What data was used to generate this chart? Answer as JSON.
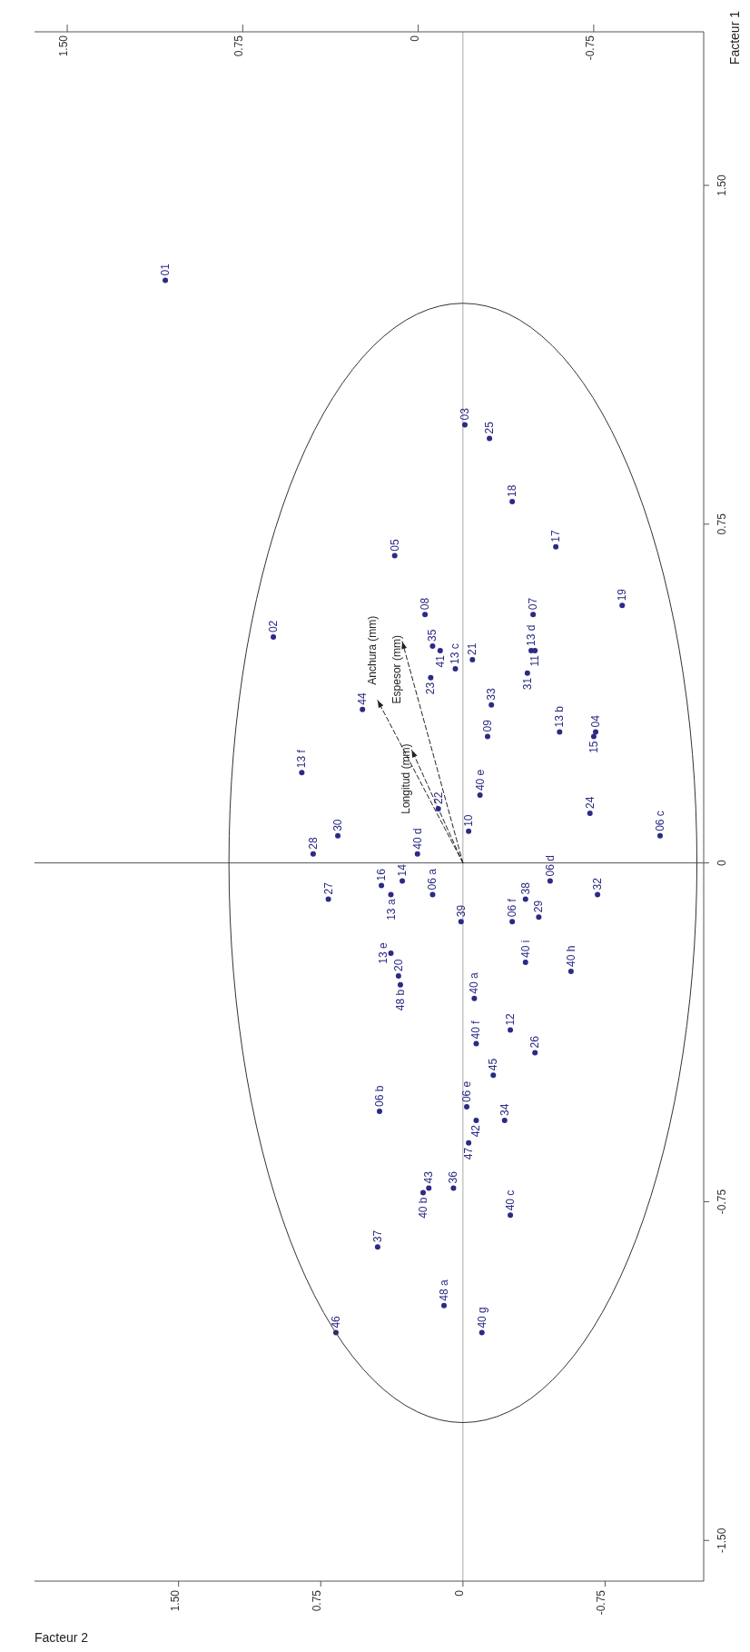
{
  "chart_data": {
    "type": "scatter",
    "xlabel": "Facteur 2",
    "ylabel": "Facteur 1",
    "marker": "circle",
    "xlim": [
      2.26,
      -1.27
    ],
    "ylim": [
      -1.59,
      1.84
    ],
    "x2lim": [
      1.64,
      -1.22
    ],
    "xticks": [
      {
        "value": 1.5,
        "label": "1.50"
      },
      0.75,
      0,
      -0.75
    ],
    "x2ticks": [
      {
        "value": 1.5,
        "label": "1.50"
      },
      0.75,
      0,
      -0.75
    ],
    "yticks": [
      {
        "value": -1.5,
        "label": "-1.50"
      },
      -0.75,
      0,
      0.75,
      {
        "value": 1.5,
        "label": "1.50"
      }
    ],
    "ref_lines": [
      {
        "axis": "x",
        "value": 0,
        "color": "#aaaaaa"
      },
      {
        "axis": "y",
        "value": 0,
        "color": "#555555"
      }
    ],
    "series": [
      {
        "color": "#2b2a85",
        "x": [
          1.57,
          -0.01,
          -0.14,
          -0.26,
          -0.49,
          0.36,
          -0.84,
          -0.37,
          0.2,
          1.0,
          0.16,
          0.12,
          -0.36,
          -0.38,
          -0.05,
          0.04,
          -0.34,
          0.17,
          -0.15,
          0.53,
          -0.51,
          -0.7,
          -0.69,
          -0.13,
          0.85,
          -0.09,
          0.13,
          -0.67,
          -1.04,
          0.66,
          0.79,
          0.24,
          -0.03,
          0.43,
          0.32,
          0.38,
          0.16,
          0.71,
          -0.46,
          -0.33,
          -0.71,
          -0.4,
          -0.26,
          0.01,
          0.38,
          -0.33,
          -0.57,
          0.34,
          0.33,
          -0.06,
          -0.25,
          -0.07,
          -0.38,
          -0.16,
          0.44,
          -0.02,
          -0.07,
          -0.22,
          -0.03,
          0.18,
          0.21,
          0.05,
          -0.25,
          0.45,
          0.67,
          0.1,
          -0.1
        ],
        "values": [
          1.29,
          0.97,
          0.94,
          0.8,
          0.7,
          0.68,
          0.57,
          0.55,
          0.55,
          0.5,
          0.48,
          0.47,
          0.47,
          0.47,
          0.45,
          0.43,
          0.42,
          0.41,
          0.35,
          0.34,
          0.29,
          0.29,
          0.28,
          0.28,
          0.2,
          0.15,
          0.12,
          0.11,
          0.06,
          0.06,
          0.02,
          0.02,
          0.07,
          -0.05,
          -0.04,
          -0.07,
          -0.07,
          -0.08,
          -0.04,
          -0.08,
          -0.07,
          -0.12,
          -0.13,
          -0.13,
          -0.2,
          -0.22,
          -0.24,
          -0.25,
          -0.27,
          -0.3,
          -0.37,
          -0.4,
          -0.42,
          -0.47,
          -0.55,
          -0.54,
          -0.57,
          -0.57,
          -0.62,
          -0.72,
          -0.73,
          -0.72,
          -0.78,
          -0.85,
          -1.04,
          -0.98,
          -1.04
        ]
      },
      {
        "type": "line",
        "name": "Espesor (mm)",
        "color": "#222222",
        "marker": "triangle",
        "line_style": "dashed",
        "x": [
          0,
          0.32
        ],
        "values": [
          0,
          0.49
        ]
      },
      {
        "type": "line",
        "name": "Anchura (mm)",
        "color": "#222222",
        "marker": "triangle",
        "line_style": "dashed",
        "x": [
          0,
          0.45
        ],
        "values": [
          0,
          0.36
        ]
      },
      {
        "type": "line",
        "name": "Longitud (mm)",
        "color": "#222222",
        "marker": "triangle",
        "line_style": "dashed",
        "x": [
          0,
          0.27
        ],
        "values": [
          0,
          0.25
        ]
      }
    ],
    "annotations": [
      {
        "text": "01",
        "x": 1.57,
        "y": 1.29
      },
      {
        "text": "03",
        "x": -0.01,
        "y": 0.97
      },
      {
        "text": "25",
        "x": -0.14,
        "y": 0.94
      },
      {
        "text": "18",
        "x": -0.26,
        "y": 0.8
      },
      {
        "text": "17",
        "x": -0.49,
        "y": 0.7
      },
      {
        "text": "05",
        "x": 0.36,
        "y": 0.68
      },
      {
        "text": "19",
        "x": -0.84,
        "y": 0.57
      },
      {
        "text": "07",
        "x": -0.37,
        "y": 0.55
      },
      {
        "text": "08",
        "x": 0.2,
        "y": 0.55
      },
      {
        "text": "02",
        "x": 1.0,
        "y": 0.5
      },
      {
        "text": "35",
        "x": 0.16,
        "y": 0.48
      },
      {
        "text": "41",
        "x": 0.12,
        "y": 0.47
      },
      {
        "text": "13 d",
        "x": -0.36,
        "y": 0.47
      },
      {
        "text": "11",
        "x": -0.38,
        "y": 0.47
      },
      {
        "text": "21",
        "x": -0.05,
        "y": 0.45
      },
      {
        "text": "13 c",
        "x": 0.04,
        "y": 0.43
      },
      {
        "text": "31",
        "x": -0.34,
        "y": 0.42
      },
      {
        "text": "23",
        "x": 0.17,
        "y": 0.41
      },
      {
        "text": "33",
        "x": -0.15,
        "y": 0.35
      },
      {
        "text": "44",
        "x": 0.53,
        "y": 0.34
      },
      {
        "text": "13 b",
        "x": -0.51,
        "y": 0.29
      },
      {
        "text": "04",
        "x": -0.7,
        "y": 0.29
      },
      {
        "text": "15",
        "x": -0.69,
        "y": 0.28
      },
      {
        "text": "09",
        "x": -0.13,
        "y": 0.28
      },
      {
        "text": "13 f",
        "x": 0.85,
        "y": 0.2
      },
      {
        "text": "40 e",
        "x": -0.09,
        "y": 0.15
      },
      {
        "text": "22",
        "x": 0.13,
        "y": 0.12
      },
      {
        "text": "24",
        "x": -0.67,
        "y": 0.11
      },
      {
        "text": "06 c",
        "x": -1.04,
        "y": 0.06
      },
      {
        "text": "30",
        "x": 0.66,
        "y": 0.06
      },
      {
        "text": "28",
        "x": 0.79,
        "y": 0.02
      },
      {
        "text": "40 d",
        "x": 0.24,
        "y": 0.02
      },
      {
        "text": "10",
        "x": -0.03,
        "y": 0.07
      },
      {
        "text": "16",
        "x": 0.43,
        "y": -0.05
      },
      {
        "text": "14",
        "x": 0.32,
        "y": -0.04
      },
      {
        "text": "13 a",
        "x": 0.38,
        "y": -0.07
      },
      {
        "text": "06 a",
        "x": 0.16,
        "y": -0.07
      },
      {
        "text": "27",
        "x": 0.71,
        "y": -0.08
      },
      {
        "text": "06 d",
        "x": -0.46,
        "y": -0.04
      },
      {
        "text": "38",
        "x": -0.33,
        "y": -0.08
      },
      {
        "text": "32",
        "x": -0.71,
        "y": -0.07
      },
      {
        "text": "29",
        "x": -0.4,
        "y": -0.12
      },
      {
        "text": "06 f",
        "x": -0.26,
        "y": -0.13
      },
      {
        "text": "39",
        "x": 0.01,
        "y": -0.13
      },
      {
        "text": "13 e",
        "x": 0.38,
        "y": -0.2
      },
      {
        "text": "40 i",
        "x": -0.33,
        "y": -0.22
      },
      {
        "text": "40 h",
        "x": -0.57,
        "y": -0.24
      },
      {
        "text": "20",
        "x": 0.34,
        "y": -0.25
      },
      {
        "text": "48 b",
        "x": 0.33,
        "y": -0.27
      },
      {
        "text": "40 a",
        "x": -0.06,
        "y": -0.3
      },
      {
        "text": "12",
        "x": -0.25,
        "y": -0.37
      },
      {
        "text": "40 f",
        "x": -0.07,
        "y": -0.4
      },
      {
        "text": "26",
        "x": -0.38,
        "y": -0.42
      },
      {
        "text": "45",
        "x": -0.16,
        "y": -0.47
      },
      {
        "text": "06 b",
        "x": 0.44,
        "y": -0.55
      },
      {
        "text": "06 e",
        "x": -0.02,
        "y": -0.54
      },
      {
        "text": "42",
        "x": -0.07,
        "y": -0.57
      },
      {
        "text": "34",
        "x": -0.22,
        "y": -0.57
      },
      {
        "text": "47",
        "x": -0.03,
        "y": -0.62
      },
      {
        "text": "43",
        "x": 0.18,
        "y": -0.72
      },
      {
        "text": "40 b",
        "x": 0.21,
        "y": -0.73
      },
      {
        "text": "36",
        "x": 0.05,
        "y": -0.72
      },
      {
        "text": "40 c",
        "x": -0.25,
        "y": -0.78
      },
      {
        "text": "37",
        "x": 0.45,
        "y": -0.85
      },
      {
        "text": "46",
        "x": 0.67,
        "y": -1.04
      },
      {
        "text": "48 a",
        "x": 0.1,
        "y": -0.98
      },
      {
        "text": "40 g",
        "x": -0.1,
        "y": -1.04
      }
    ]
  }
}
